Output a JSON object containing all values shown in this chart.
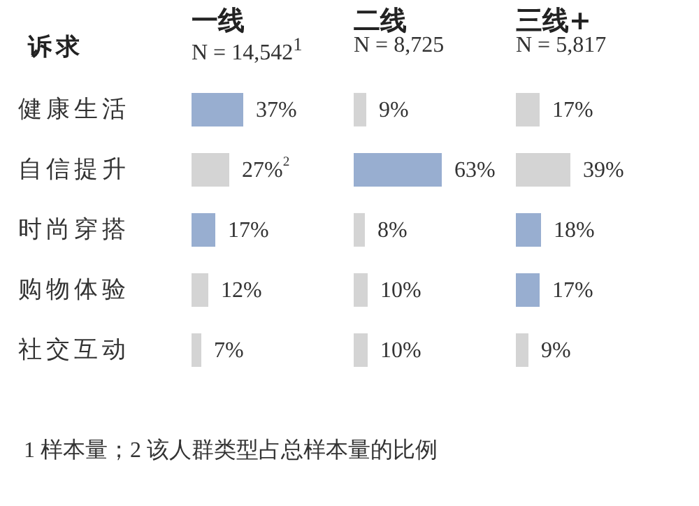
{
  "chart_data": [
    {
      "type": "bar",
      "orientation": "horizontal",
      "title": "一线",
      "subtitle": "N = 14,542$^{1}$",
      "ylabel": "诉求",
      "categories": [
        "健康生活",
        "自信提升",
        "时尚穿搭",
        "购物体验",
        "社交互动"
      ],
      "values": [
        37,
        27,
        17,
        12,
        7
      ],
      "colors": [
        "#98aed0",
        "#d4d4d4",
        "#98aed0",
        "#d4d4d4",
        "#d4d4d4"
      ],
      "value_labels": [
        "37%",
        "27%$^{2}$",
        "17%",
        "12%",
        "7%"
      ],
      "tick_labels": "y",
      "annotations": [
        "1 样本量；2 该人群类型占总样本量的比例"
      ]
    },
    {
      "type": "bar",
      "orientation": "horizontal",
      "title": "二线",
      "subtitle": "N = 8,725",
      "values": [
        9,
        63,
        8,
        10,
        10
      ],
      "colors": [
        "#d4d4d4",
        "#98aed0",
        "#d4d4d4",
        "#d4d4d4",
        "#d4d4d4"
      ],
      "value_labels": [
        "9%",
        "63%",
        "8%",
        "10%",
        "10%"
      ],
      "tick_labels": false
    },
    {
      "type": "bar",
      "orientation": "horizontal",
      "title": "三线+",
      "subtitle": "N = 5,817",
      "values": [
        17,
        39,
        18,
        17,
        9
      ],
      "colors": [
        "#d4d4d4",
        "#d4d4d4",
        "#98aed0",
        "#98aed0",
        "#d4d4d4"
      ],
      "value_labels": [
        "17%",
        "39%",
        "18%",
        "17%",
        "9%"
      ],
      "tick_labels": false
    }
  ]
}
